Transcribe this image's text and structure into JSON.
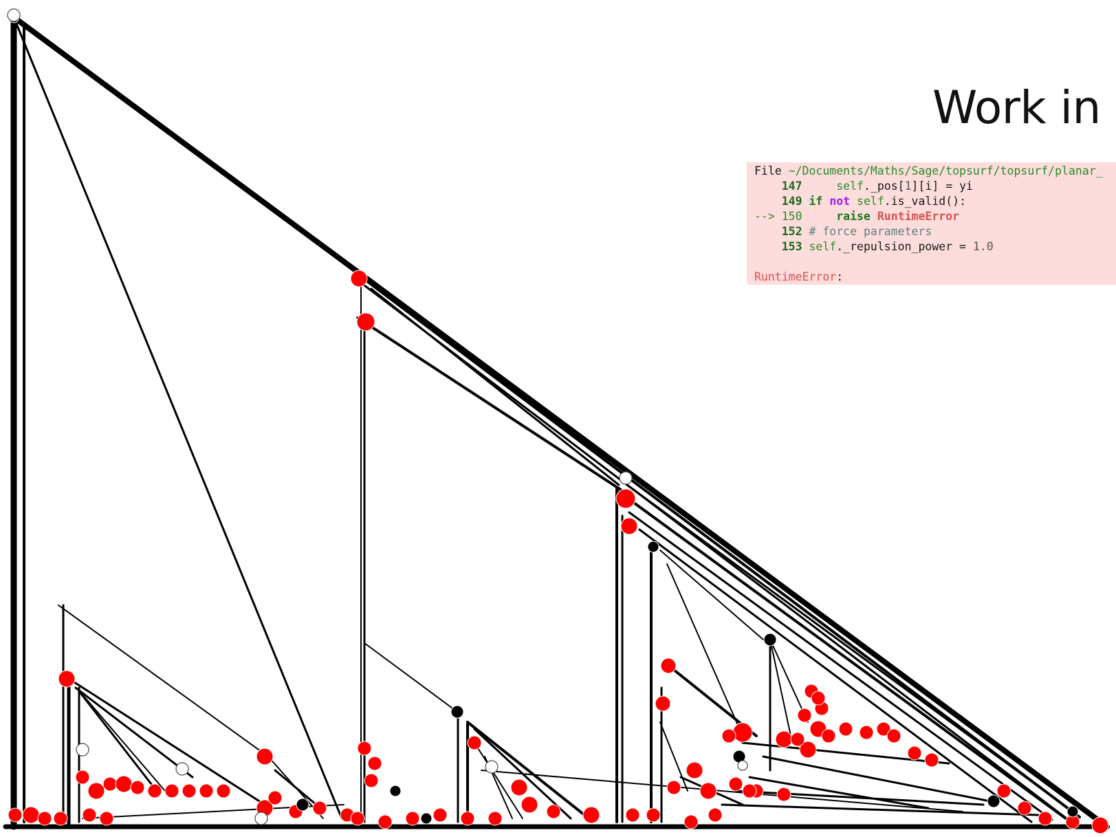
{
  "slide": {
    "title": "Work in p"
  },
  "traceback": {
    "file_prefix": "File ",
    "file_path": "~/Documents/Maths/Sage/topsurf/topsurf/planar_",
    "lines": [
      {
        "num": "147",
        "arrow": "",
        "indent": "    ",
        "parts": [
          {
            "t": "self",
            "c": "self"
          },
          {
            "t": "._pos[",
            "c": ""
          },
          {
            "t": "1",
            "c": "num"
          },
          {
            "t": "][i] = yi",
            "c": ""
          }
        ]
      },
      {
        "num": "149",
        "arrow": "",
        "indent": "",
        "parts": [
          {
            "t": "if ",
            "c": "kw"
          },
          {
            "t": "not",
            "c": "kw-not"
          },
          {
            "t": " ",
            "c": ""
          },
          {
            "t": "self",
            "c": "self"
          },
          {
            "t": ".is_valid():",
            "c": ""
          }
        ]
      },
      {
        "num": "150",
        "arrow": "--> ",
        "indent": "    ",
        "parts": [
          {
            "t": "raise",
            "c": "kw"
          },
          {
            "t": " ",
            "c": ""
          },
          {
            "t": "RuntimeError",
            "c": "err"
          }
        ]
      },
      {
        "num": "152",
        "arrow": "",
        "indent": "",
        "parts": [
          {
            "t": "# force parameters",
            "c": "comment"
          }
        ]
      },
      {
        "num": "153",
        "arrow": "",
        "indent": "",
        "parts": [
          {
            "t": "self",
            "c": "self"
          },
          {
            "t": "._repulsion_power = ",
            "c": ""
          },
          {
            "t": "1.0",
            "c": "num"
          }
        ]
      }
    ],
    "error_name": "RuntimeError",
    "error_suffix": ":"
  },
  "colors": {
    "vertex_red": "#ff0000",
    "vertex_black": "#000000",
    "vertex_white": "#ffffff",
    "edge": "#000000",
    "traceback_bg": "#fddcdc"
  }
}
